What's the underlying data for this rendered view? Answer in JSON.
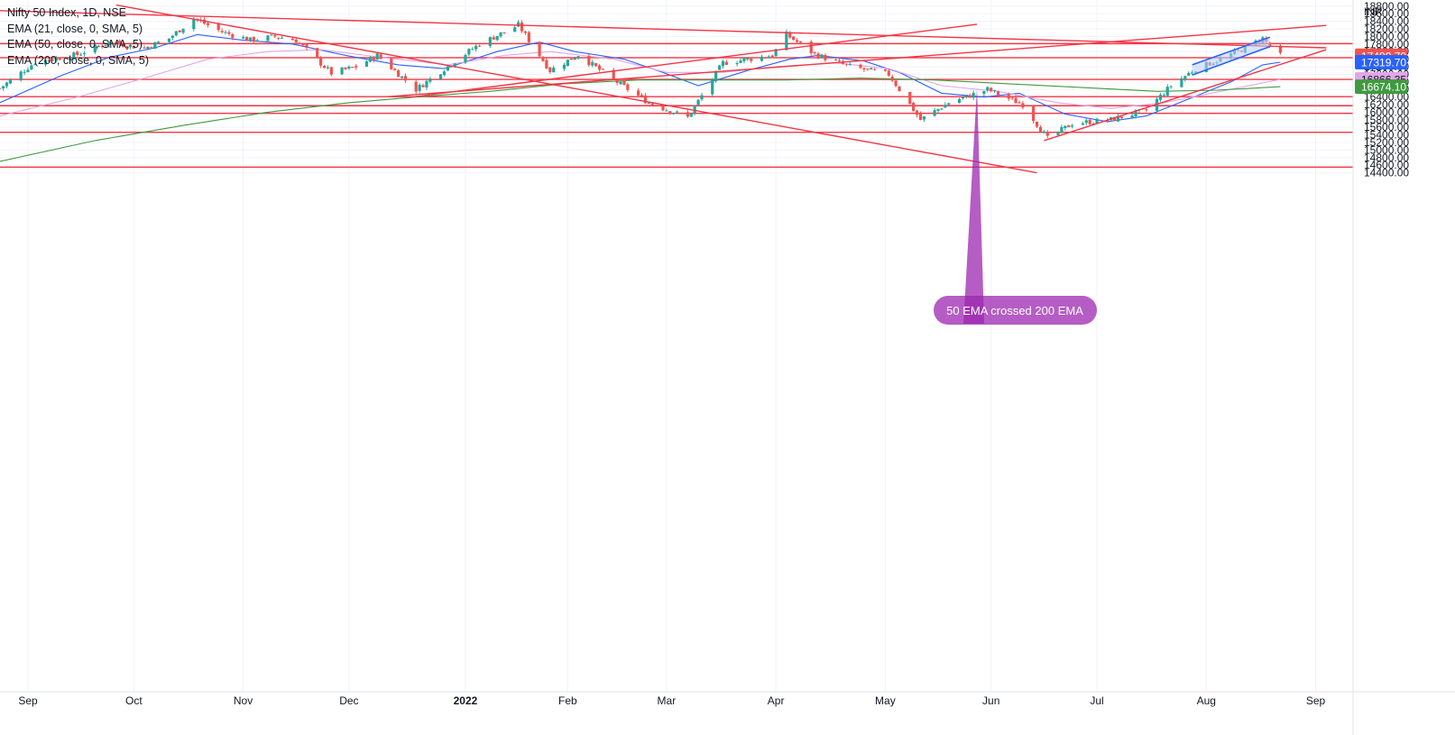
{
  "legend": {
    "title": "Nifty 50 Index, 1D, NSE",
    "ema21": "EMA (21, close, 0, SMA, 5)",
    "ema50": "EMA (50, close, 0, SMA, 5)",
    "ema200": "EMA (200, close, 0, SMA, 5)"
  },
  "colors": {
    "up": "#26a69a",
    "down": "#ef5350",
    "drawing": "#f23645",
    "ema21": "#2962ff",
    "ema50": "#e1a6e9",
    "ema200": "#3f9a3f",
    "annotation": "#9c27b0",
    "channel_fill": "#bbcdf7"
  },
  "chart_data": {
    "type": "candlestick",
    "currency": "INR",
    "ylim": [
      14380,
      19000
    ],
    "y_ticks": [
      "18800.00",
      "18600.00",
      "18400.00",
      "18200.00",
      "18000.00",
      "17800.00",
      "17600.00",
      "17400.00",
      "17200.00",
      "17000.00",
      "16800.00",
      "16600.00",
      "16400.00",
      "16200.00",
      "16000.00",
      "15800.00",
      "15600.00",
      "15400.00",
      "15200.00",
      "15000.00",
      "14800.00",
      "14600.00",
      "14400.00"
    ],
    "x_ticks": [
      {
        "label": "Sep",
        "date": "2021-09-01"
      },
      {
        "label": "Oct",
        "date": "2021-10-01"
      },
      {
        "label": "Nov",
        "date": "2021-11-01"
      },
      {
        "label": "Dec",
        "date": "2021-12-01"
      },
      {
        "label": "2022",
        "date": "2022-01-03",
        "strong": true
      },
      {
        "label": "Feb",
        "date": "2022-02-01"
      },
      {
        "label": "Mar",
        "date": "2022-03-01"
      },
      {
        "label": "Apr",
        "date": "2022-04-01"
      },
      {
        "label": "May",
        "date": "2022-05-02"
      },
      {
        "label": "Jun",
        "date": "2022-06-01"
      },
      {
        "label": "Jul",
        "date": "2022-07-01"
      },
      {
        "label": "Aug",
        "date": "2022-08-01"
      },
      {
        "label": "Sep",
        "date": "2022-09-01"
      }
    ],
    "x_range": [
      "2021-08-24",
      "2022-09-04"
    ],
    "close_path": [
      [
        "2021-08-24",
        16630
      ],
      [
        "2021-09-03",
        17320
      ],
      [
        "2021-09-15",
        17520
      ],
      [
        "2021-09-24",
        17850
      ],
      [
        "2021-10-04",
        17690
      ],
      [
        "2021-10-11",
        17950
      ],
      [
        "2021-10-18",
        18480
      ],
      [
        "2021-10-26",
        18120
      ],
      [
        "2021-11-03",
        17900
      ],
      [
        "2021-11-10",
        18000
      ],
      [
        "2021-11-16",
        17900
      ],
      [
        "2021-11-26",
        17030
      ],
      [
        "2021-12-03",
        17200
      ],
      [
        "2021-12-09",
        17500
      ],
      [
        "2021-12-20",
        16600
      ],
      [
        "2021-12-31",
        17350
      ],
      [
        "2022-01-07",
        17800
      ],
      [
        "2022-01-18",
        18300
      ],
      [
        "2022-01-27",
        17100
      ],
      [
        "2022-02-04",
        17520
      ],
      [
        "2022-02-14",
        16850
      ],
      [
        "2022-02-24",
        16250
      ],
      [
        "2022-03-07",
        15860
      ],
      [
        "2022-03-17",
        17300
      ],
      [
        "2022-03-31",
        17500
      ],
      [
        "2022-04-04",
        18050
      ],
      [
        "2022-04-12",
        17530
      ],
      [
        "2022-04-22",
        17200
      ],
      [
        "2022-05-03",
        17000
      ],
      [
        "2022-05-12",
        15800
      ],
      [
        "2022-05-20",
        16250
      ],
      [
        "2022-05-31",
        16600
      ],
      [
        "2022-06-10",
        16200
      ],
      [
        "2022-06-17",
        15300
      ],
      [
        "2022-06-24",
        15700
      ],
      [
        "2022-07-05",
        15800
      ],
      [
        "2022-07-15",
        16050
      ],
      [
        "2022-07-22",
        16700
      ],
      [
        "2022-07-29",
        17150
      ],
      [
        "2022-08-05",
        17400
      ],
      [
        "2022-08-12",
        17700
      ],
      [
        "2022-08-17",
        17950
      ],
      [
        "2022-08-19",
        17750
      ],
      [
        "2022-08-22",
        17490.7
      ]
    ],
    "series": [
      {
        "name": "EMA (21, close, 0, SMA, 5)",
        "last": 17319.7,
        "points": [
          [
            "2021-08-24",
            16250
          ],
          [
            "2021-09-10",
            16950
          ],
          [
            "2021-09-24",
            17450
          ],
          [
            "2021-10-07",
            17700
          ],
          [
            "2021-10-19",
            18050
          ],
          [
            "2021-11-01",
            17900
          ],
          [
            "2021-11-15",
            17800
          ],
          [
            "2021-11-30",
            17500
          ],
          [
            "2021-12-15",
            17250
          ],
          [
            "2021-12-28",
            17150
          ],
          [
            "2022-01-12",
            17600
          ],
          [
            "2022-01-24",
            17850
          ],
          [
            "2022-02-03",
            17600
          ],
          [
            "2022-02-17",
            17400
          ],
          [
            "2022-02-28",
            17050
          ],
          [
            "2022-03-10",
            16700
          ],
          [
            "2022-03-24",
            17100
          ],
          [
            "2022-04-05",
            17400
          ],
          [
            "2022-04-13",
            17500
          ],
          [
            "2022-04-26",
            17350
          ],
          [
            "2022-05-06",
            17050
          ],
          [
            "2022-05-18",
            16500
          ],
          [
            "2022-05-30",
            16400
          ],
          [
            "2022-06-09",
            16500
          ],
          [
            "2022-06-22",
            15950
          ],
          [
            "2022-07-04",
            15750
          ],
          [
            "2022-07-15",
            15900
          ],
          [
            "2022-07-27",
            16350
          ],
          [
            "2022-08-08",
            16800
          ],
          [
            "2022-08-17",
            17250
          ],
          [
            "2022-08-22",
            17319.7
          ]
        ]
      },
      {
        "name": "EMA (50, close, 0, SMA, 5)",
        "last": 16866.35,
        "points": [
          [
            "2021-08-24",
            15900
          ],
          [
            "2021-09-15",
            16400
          ],
          [
            "2021-10-04",
            16900
          ],
          [
            "2021-10-22",
            17400
          ],
          [
            "2021-11-08",
            17600
          ],
          [
            "2021-11-23",
            17650
          ],
          [
            "2021-12-10",
            17450
          ],
          [
            "2021-12-29",
            17250
          ],
          [
            "2022-01-14",
            17500
          ],
          [
            "2022-01-27",
            17600
          ],
          [
            "2022-02-14",
            17400
          ],
          [
            "2022-03-01",
            17050
          ],
          [
            "2022-03-17",
            17050
          ],
          [
            "2022-04-01",
            17200
          ],
          [
            "2022-04-18",
            17300
          ],
          [
            "2022-05-03",
            17150
          ],
          [
            "2022-05-18",
            16700
          ],
          [
            "2022-06-03",
            16550
          ],
          [
            "2022-06-20",
            16250
          ],
          [
            "2022-07-05",
            16100
          ],
          [
            "2022-07-20",
            16250
          ],
          [
            "2022-08-05",
            16550
          ],
          [
            "2022-08-22",
            16866.35
          ]
        ]
      },
      {
        "name": "EMA (200, close, 0, SMA, 5)",
        "last": 16674.1,
        "points": [
          [
            "2021-08-24",
            14700
          ],
          [
            "2021-09-20",
            15250
          ],
          [
            "2021-10-15",
            15650
          ],
          [
            "2021-11-08",
            16000
          ],
          [
            "2021-12-01",
            16250
          ],
          [
            "2021-12-20",
            16400
          ],
          [
            "2022-01-10",
            16550
          ],
          [
            "2022-01-31",
            16750
          ],
          [
            "2022-02-21",
            16850
          ],
          [
            "2022-03-14",
            16850
          ],
          [
            "2022-04-04",
            16850
          ],
          [
            "2022-04-25",
            16900
          ],
          [
            "2022-05-16",
            16850
          ],
          [
            "2022-06-06",
            16750
          ],
          [
            "2022-06-27",
            16650
          ],
          [
            "2022-07-18",
            16550
          ],
          [
            "2022-08-04",
            16580
          ],
          [
            "2022-08-22",
            16674.1
          ]
        ]
      }
    ],
    "last_price": 17490.7,
    "horizontal_levels": [
      17810,
      17440,
      16866,
      16410,
      16170,
      15970,
      15470,
      14550
    ],
    "trendlines": [
      [
        [
          "2021-08-24",
          18680
        ],
        [
          "2022-09-04",
          17700
        ]
      ],
      [
        [
          "2021-09-26",
          18830
        ],
        [
          "2022-06-14",
          14400
        ]
      ],
      [
        [
          "2021-12-12",
          16410
        ],
        [
          "2022-09-04",
          18290
        ]
      ],
      [
        [
          "2021-12-18",
          16390
        ],
        [
          "2022-05-28",
          18320
        ]
      ],
      [
        [
          "2022-06-16",
          15250
        ],
        [
          "2022-09-04",
          17650
        ]
      ]
    ],
    "channel": {
      "upper": [
        [
          "2022-07-28",
          17250
        ],
        [
          "2022-08-19",
          17980
        ]
      ],
      "lower": [
        [
          "2022-07-28",
          16980
        ],
        [
          "2022-08-19",
          17730
        ]
      ]
    },
    "annotation": "50 EMA crossed 200 EMA",
    "annotation_anchor": [
      "2022-05-28",
      16650
    ],
    "price_badges": [
      {
        "value": "17490.70",
        "role": "last"
      },
      {
        "value": "17319.70",
        "role": "ema21"
      },
      {
        "value": "16866.35",
        "role": "ema50"
      },
      {
        "value": "16674.10",
        "role": "ema200"
      }
    ]
  }
}
